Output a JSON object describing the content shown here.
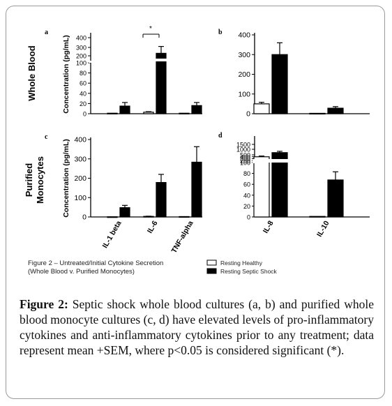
{
  "figure": {
    "row_labels": [
      "Whole Blood",
      "Purified",
      "Monocytes"
    ],
    "inner_caption_line1": "Figure 2 – Untreated/Initial Cytokine Secretion",
    "inner_caption_line2": "(Whole Blood v. Purified Monocytes)",
    "legend": [
      "Resting Healthy",
      "Resting Septic Shock"
    ],
    "caption_label": "Figure 2:",
    "caption_text": "Septic shock whole blood cultures (a, b) and purified whole blood monocyte cultures (c, d) have elevated levels of pro-inflammatory cytokines and anti-inflammatory cytokines prior to any treatment; data represent mean +SEM, where p<0.05 is considered significant (*).",
    "colors": {
      "healthy": "#ffffff",
      "septic": "#000000",
      "axis": "#000000"
    }
  },
  "chart_data": [
    {
      "panel": "a",
      "type": "bar",
      "ylabel": "Concentration (pg/mL)",
      "categories": [
        "IL-1 beta",
        "IL-6",
        "TNF-alpha"
      ],
      "yticks": [
        "0",
        "20",
        "40",
        "60",
        "80",
        "100",
        "200",
        "300",
        "400"
      ],
      "significance": "*",
      "series": [
        {
          "name": "Resting Healthy",
          "values": [
            1,
            3,
            1
          ],
          "sem": [
            0,
            1,
            0
          ]
        },
        {
          "name": "Resting Septic Shock",
          "values": [
            15,
            230,
            16
          ],
          "sem": [
            7,
            80,
            6
          ]
        }
      ]
    },
    {
      "panel": "b",
      "type": "bar",
      "categories": [
        "IL-8",
        "IL-10"
      ],
      "yticks": [
        "0",
        "100",
        "200",
        "300",
        "400"
      ],
      "ylim": [
        0,
        400
      ],
      "series": [
        {
          "name": "Resting Healthy",
          "values": [
            50,
            2
          ],
          "sem": [
            8,
            0
          ]
        },
        {
          "name": "Resting Septic Shock",
          "values": [
            300,
            28
          ],
          "sem": [
            60,
            8
          ]
        }
      ]
    },
    {
      "panel": "c",
      "type": "bar",
      "ylabel": "Concentration (pg/mL)",
      "categories": [
        "IL-1 beta",
        "IL-6",
        "TNF-alpha"
      ],
      "yticks": [
        "0",
        "100",
        "200",
        "300",
        "400"
      ],
      "ylim": [
        0,
        400
      ],
      "series": [
        {
          "name": "Resting Healthy",
          "values": [
            1,
            3,
            2
          ],
          "sem": [
            0,
            1,
            0
          ]
        },
        {
          "name": "Resting Septic Shock",
          "values": [
            48,
            178,
            283
          ],
          "sem": [
            12,
            42,
            80
          ]
        }
      ]
    },
    {
      "panel": "d",
      "type": "bar",
      "categories": [
        "IL-8",
        "IL-10"
      ],
      "yticks": [
        "0",
        "20",
        "40",
        "60",
        "80",
        "100",
        "200",
        "300",
        "400",
        "500",
        "1000",
        "1500"
      ],
      "series": [
        {
          "name": "Resting Healthy",
          "values": [
            400,
            1
          ],
          "sem": [
            40,
            0
          ]
        },
        {
          "name": "Resting Septic Shock",
          "values": [
            700,
            68
          ],
          "sem": [
            120,
            15
          ]
        }
      ]
    }
  ]
}
